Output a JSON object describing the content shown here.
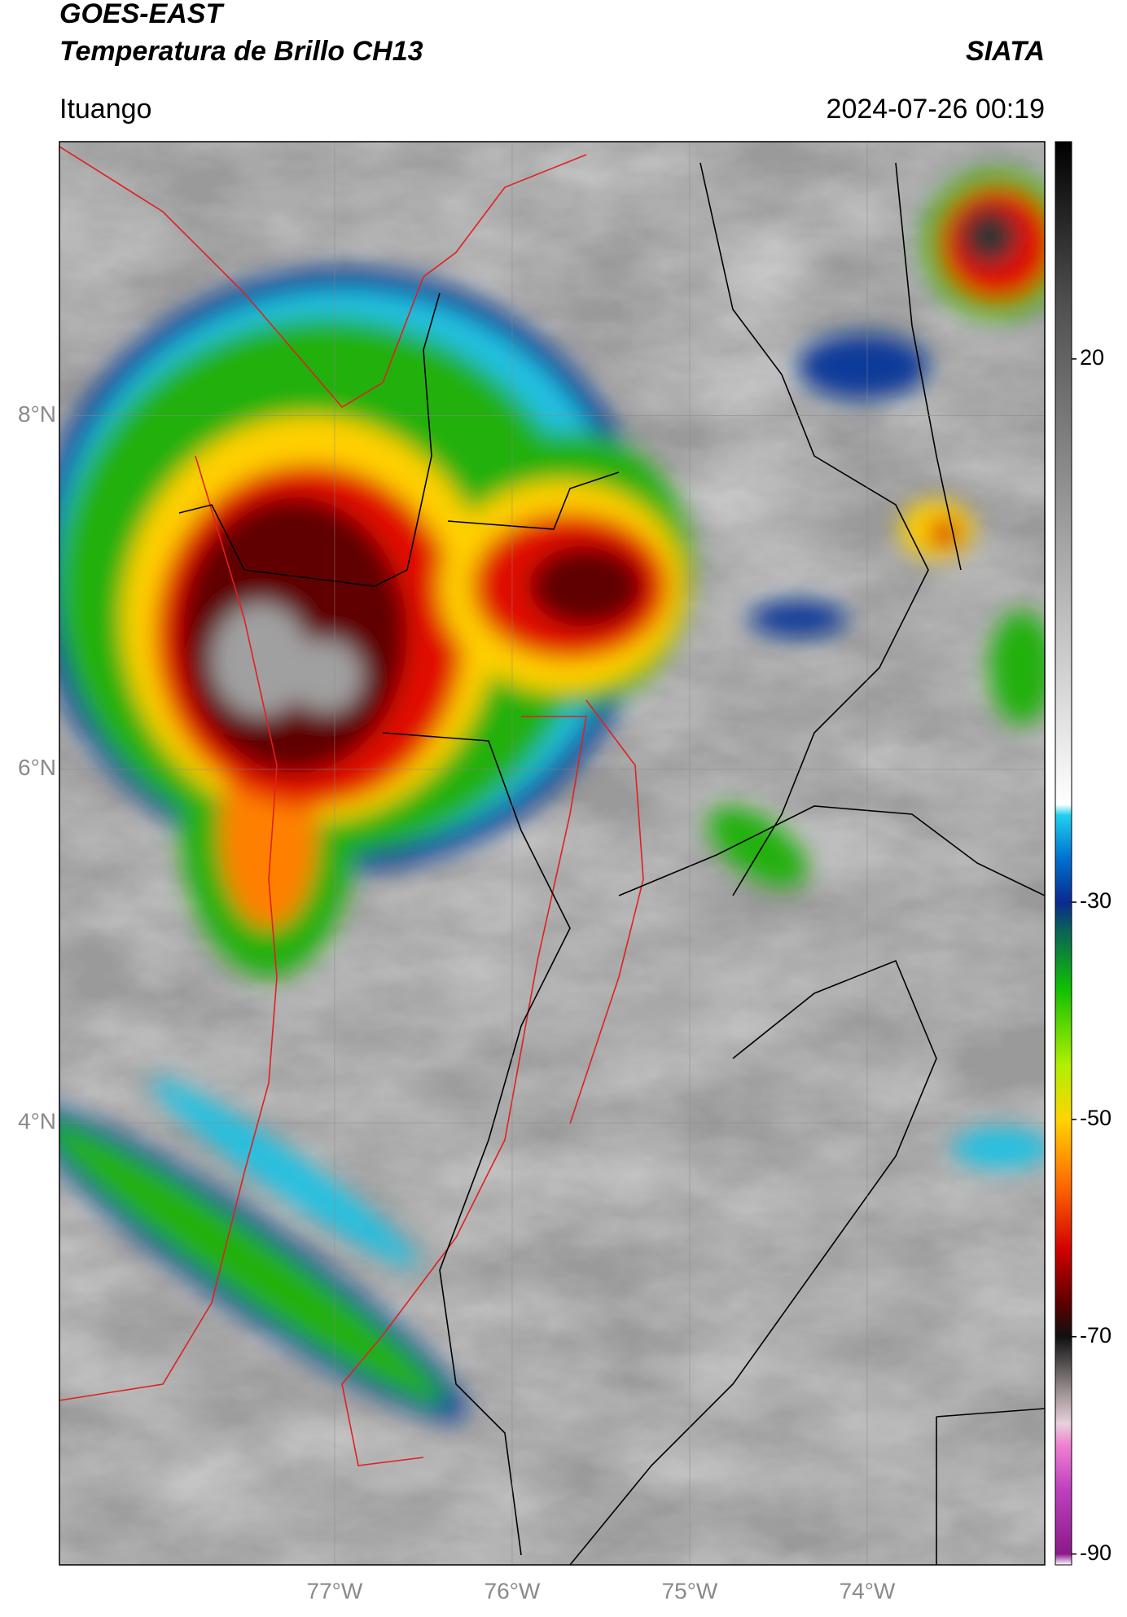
{
  "chart_data": {
    "type": "map",
    "title": "GOES-EAST",
    "subtitle": "Temperatura de Brillo CH13",
    "source": "SIATA",
    "location": "Ituango",
    "timestamp": "2024-07-26 00:19",
    "xlim": [
      -78.55,
      -73.0
    ],
    "ylim": [
      1.5,
      9.55
    ],
    "xticks": [
      {
        "value": -77,
        "label": "77°W"
      },
      {
        "value": -76,
        "label": "76°W"
      },
      {
        "value": -75,
        "label": "75°W"
      },
      {
        "value": -74,
        "label": "74°W"
      }
    ],
    "yticks": [
      {
        "value": 8,
        "label": "8°N"
      },
      {
        "value": 6,
        "label": "6°N"
      },
      {
        "value": 4,
        "label": "4°N"
      }
    ],
    "grid": true,
    "colorbar": {
      "lim": [
        -91,
        40
      ],
      "ticks": [
        20,
        -30,
        -50,
        -70,
        -90
      ],
      "stops": [
        {
          "value": -91,
          "color": "#ffffff"
        },
        {
          "value": -90,
          "color": "#8a1a8a"
        },
        {
          "value": -84,
          "color": "#c040c0"
        },
        {
          "value": -80,
          "color": "#f080d0"
        },
        {
          "value": -78,
          "color": "#e8d0dc"
        },
        {
          "value": -75,
          "color": "#9a9090"
        },
        {
          "value": -70,
          "color": "#101010"
        },
        {
          "value": -67,
          "color": "#5a0000"
        },
        {
          "value": -62,
          "color": "#d00000"
        },
        {
          "value": -56,
          "color": "#ff6a00"
        },
        {
          "value": -50,
          "color": "#ffd400"
        },
        {
          "value": -45,
          "color": "#b0f000"
        },
        {
          "value": -38,
          "color": "#10c000"
        },
        {
          "value": -33,
          "color": "#0a6a50"
        },
        {
          "value": -30,
          "color": "#0a2a90"
        },
        {
          "value": -26,
          "color": "#0070d0"
        },
        {
          "value": -22,
          "color": "#20d0f0"
        },
        {
          "value": -21,
          "color": "#ffffff"
        },
        {
          "value": 0,
          "color": "#b0b0b0"
        },
        {
          "value": 25,
          "color": "#505050"
        },
        {
          "value": 40,
          "color": "#000000"
        }
      ]
    }
  }
}
